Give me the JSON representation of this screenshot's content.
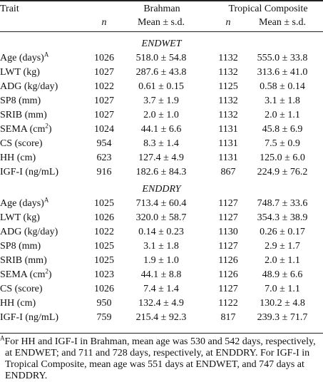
{
  "header": {
    "trait": "Trait",
    "brahman": "Brahman",
    "tropical": "Tropical Composite",
    "n": "n",
    "mean_sd": "Mean ± s.d."
  },
  "sections": [
    {
      "title": "ENDWET",
      "rows": [
        {
          "trait": "Age (days)",
          "sup": "A",
          "bn": "1026",
          "bmean": "518.0 ± 54.8",
          "tn": "1132",
          "tmean": "555.0 ± 33.8"
        },
        {
          "trait": "LWT (kg)",
          "sup": "",
          "bn": "1027",
          "bmean": "287.6 ± 43.8",
          "tn": "1132",
          "tmean": "313.6 ± 41.0"
        },
        {
          "trait": "ADG (kg/day)",
          "sup": "",
          "bn": "1022",
          "bmean": "0.61 ± 0.15",
          "tn": "1125",
          "tmean": "0.58 ± 0.14"
        },
        {
          "trait": "SP8 (mm)",
          "sup": "",
          "bn": "1027",
          "bmean": "3.7 ± 1.9",
          "tn": "1132",
          "tmean": "3.1 ± 1.8"
        },
        {
          "trait": "SRIB (mm)",
          "sup": "",
          "bn": "1027",
          "bmean": "2.0 ± 1.0",
          "tn": "1132",
          "tmean": "2.0 ± 1.1"
        },
        {
          "trait": "SEMA (cm",
          "sup": "2",
          "tail": ")",
          "bn": "1024",
          "bmean": "44.1 ± 6.6",
          "tn": "1131",
          "tmean": "45.8 ± 6.9"
        },
        {
          "trait": "CS (score)",
          "sup": "",
          "bn": "954",
          "bmean": "8.3 ± 1.4",
          "tn": "1131",
          "tmean": "7.5 ± 0.9"
        },
        {
          "trait": "HH (cm)",
          "sup": "",
          "bn": "623",
          "bmean": "127.4 ± 4.9",
          "tn": "1131",
          "tmean": "125.0 ± 6.0"
        },
        {
          "trait": "IGF-I (ng/mL)",
          "sup": "",
          "bn": "916",
          "bmean": "182.6 ± 84.3",
          "tn": "867",
          "tmean": "224.9 ± 76.2"
        }
      ]
    },
    {
      "title": "ENDDRY",
      "rows": [
        {
          "trait": "Age (days)",
          "sup": "A",
          "bn": "1025",
          "bmean": "713.4 ± 60.4",
          "tn": "1127",
          "tmean": "748.7 ± 33.6"
        },
        {
          "trait": "LWT (kg)",
          "sup": "",
          "bn": "1026",
          "bmean": "320.0 ± 58.7",
          "tn": "1127",
          "tmean": "354.3 ± 38.9"
        },
        {
          "trait": "ADG (kg/day)",
          "sup": "",
          "bn": "1022",
          "bmean": "0.14 ± 0.23",
          "tn": "1130",
          "tmean": "0.26 ± 0.17"
        },
        {
          "trait": "SP8 (mm)",
          "sup": "",
          "bn": "1025",
          "bmean": "3.1 ± 1.8",
          "tn": "1127",
          "tmean": "2.9 ± 1.7"
        },
        {
          "trait": "SRIB (mm)",
          "sup": "",
          "bn": "1025",
          "bmean": "1.9 ± 1.0",
          "tn": "1126",
          "tmean": "2.0 ± 1.1"
        },
        {
          "trait": "SEMA (cm",
          "sup": "2",
          "tail": ")",
          "bn": "1023",
          "bmean": "44.1 ± 8.8",
          "tn": "1126",
          "tmean": "48.9 ± 6.6"
        },
        {
          "trait": "CS (score)",
          "sup": "",
          "bn": "1026",
          "bmean": "7.4 ± 1.4",
          "tn": "1127",
          "tmean": "7.0 ± 1.1"
        },
        {
          "trait": "HH (cm)",
          "sup": "",
          "bn": "950",
          "bmean": "132.4 ± 4.9",
          "tn": "1122",
          "tmean": "130.2 ± 4.8"
        },
        {
          "trait": "IGF-I (ng/mL)",
          "sup": "",
          "bn": "759",
          "bmean": "215.4 ± 92.3",
          "tn": "817",
          "tmean": "239.3 ± 71.7"
        }
      ]
    }
  ],
  "footnote": {
    "marker": "A",
    "lines": [
      "For HH and IGF-I in Brahman, mean age was 530 and 542 days, respectively,",
      "at ENDWET; and 711 and 728 days, respectively, at ENDDRY. For IGF-I in",
      "Tropical Composite, mean age was 551 days at ENDWET, and 747 days at",
      "ENDDRY."
    ]
  }
}
